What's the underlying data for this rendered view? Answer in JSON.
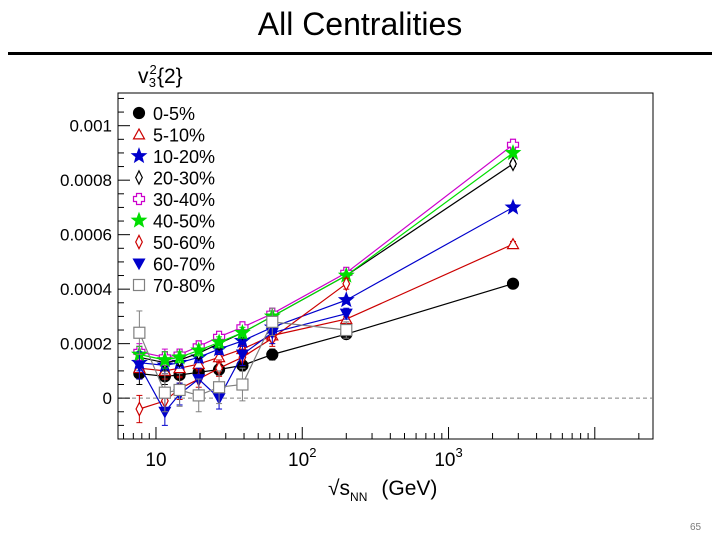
{
  "slide": {
    "title": "All Centralities",
    "page_number": "65"
  },
  "chart_data": {
    "type": "scatter",
    "title": "",
    "ylabel_main": "v",
    "ylabel_sup": "2",
    "ylabel_sub": "3",
    "ylabel_tail": "{2}",
    "xlabel_main": "√s",
    "xlabel_sub": "NN",
    "xlabel_unit": "(GeV)",
    "x_scale": "log",
    "xlim": [
      5.5,
      25000
    ],
    "ylim": [
      -0.00015,
      0.00112
    ],
    "zero_line": true,
    "grid": false,
    "legend_position": "top-left",
    "x_ticks": [
      {
        "value": 10,
        "base": "10",
        "exp": ""
      },
      {
        "value": 100,
        "base": "10",
        "exp": "2"
      },
      {
        "value": 1000,
        "base": "10",
        "exp": "3"
      }
    ],
    "y_ticks": [
      {
        "value": 0,
        "label": "0"
      },
      {
        "value": 0.0002,
        "label": "0.0002"
      },
      {
        "value": 0.0004,
        "label": "0.0004"
      },
      {
        "value": 0.0006,
        "label": "0.0006"
      },
      {
        "value": 0.0008,
        "label": "0.0008"
      },
      {
        "value": 0.001,
        "label": "0.001"
      }
    ],
    "series": [
      {
        "name": "0-5%",
        "color": "#000000",
        "marker": "circle",
        "filled": true,
        "x": [
          7.7,
          11.5,
          14.5,
          19.6,
          27,
          39,
          62.4,
          200,
          2760
        ],
        "y": [
          9e-05,
          8e-05,
          8.5e-05,
          9.5e-05,
          0.000105,
          0.00012,
          0.00016,
          0.000235,
          0.00042
        ],
        "err": [
          4e-05,
          3e-05,
          3e-05,
          2e-05,
          2e-05,
          2e-05,
          2e-05,
          1e-05,
          1e-05
        ]
      },
      {
        "name": "5-10%",
        "color": "#cc0000",
        "marker": "triangle-up",
        "filled": false,
        "x": [
          7.7,
          11.5,
          14.5,
          19.6,
          27,
          39,
          62.4,
          200,
          2760
        ],
        "y": [
          0.00011,
          0.0001,
          0.00011,
          0.000125,
          0.00015,
          0.00018,
          0.00023,
          0.00029,
          0.000565
        ],
        "err": [
          4e-05,
          3e-05,
          3e-05,
          2e-05,
          2e-05,
          2e-05,
          2e-05,
          1e-05,
          1e-05
        ]
      },
      {
        "name": "10-20%",
        "color": "#0000cc",
        "marker": "star",
        "filled": true,
        "x": [
          7.7,
          11.5,
          14.5,
          19.6,
          27,
          39,
          62.4,
          200,
          2760
        ],
        "y": [
          0.00013,
          0.00012,
          0.00013,
          0.00015,
          0.00018,
          0.00021,
          0.00026,
          0.00036,
          0.0007
        ],
        "err": [
          3e-05,
          3e-05,
          2e-05,
          2e-05,
          2e-05,
          2e-05,
          2e-05,
          1e-05,
          1e-05
        ]
      },
      {
        "name": "20-30%",
        "color": "#000000",
        "marker": "diamond",
        "filled": false,
        "x": [
          7.7,
          11.5,
          14.5,
          19.6,
          27,
          39,
          62.4,
          200,
          2760
        ],
        "y": [
          0.00015,
          0.00013,
          0.00014,
          0.000165,
          0.0002,
          0.00024,
          0.0003,
          0.00045,
          0.00086
        ],
        "err": [
          3e-05,
          3e-05,
          2e-05,
          2e-05,
          2e-05,
          2e-05,
          2e-05,
          1e-05,
          1e-05
        ]
      },
      {
        "name": "30-40%",
        "color": "#cc00cc",
        "marker": "cross",
        "filled": false,
        "x": [
          7.7,
          11.5,
          14.5,
          19.6,
          27,
          39,
          62.4,
          200,
          2760
        ],
        "y": [
          0.00017,
          0.00015,
          0.00016,
          0.00019,
          0.000225,
          0.00026,
          0.00031,
          0.00046,
          0.00093
        ],
        "err": [
          3e-05,
          3e-05,
          2e-05,
          2e-05,
          2e-05,
          2e-05,
          2e-05,
          1e-05,
          1e-05
        ]
      },
      {
        "name": "40-50%",
        "color": "#00dd00",
        "marker": "star",
        "filled": true,
        "x": [
          7.7,
          11.5,
          14.5,
          19.6,
          27,
          39,
          62.4,
          200,
          2760
        ],
        "y": [
          0.00016,
          0.00014,
          0.00015,
          0.000175,
          0.000205,
          0.00024,
          0.0003,
          0.00045,
          0.0009
        ],
        "err": [
          3e-05,
          3e-05,
          2e-05,
          2e-05,
          2e-05,
          2e-05,
          2e-05,
          1e-05,
          1e-05
        ]
      },
      {
        "name": "50-60%",
        "color": "#cc0000",
        "marker": "diamond",
        "filled": false,
        "x": [
          7.7,
          11.5,
          14.5,
          19.6,
          27,
          39,
          62.4,
          200
        ],
        "y": [
          -4e-05,
          -1e-05,
          3.5e-05,
          7e-05,
          0.00011,
          0.00015,
          0.00022,
          0.00042
        ],
        "err": [
          5e-05,
          4e-05,
          4e-05,
          3e-05,
          3e-05,
          3e-05,
          3e-05,
          2e-05
        ]
      },
      {
        "name": "60-70%",
        "color": "#0000cc",
        "marker": "triangle-down",
        "filled": true,
        "x": [
          7.7,
          11.5,
          14.5,
          19.6,
          27,
          39,
          62.4,
          200
        ],
        "y": [
          0.00012,
          -5e-05,
          1.5e-05,
          7e-05,
          0,
          0.00016,
          0.00024,
          0.00031
        ],
        "err": [
          5e-05,
          5e-05,
          4e-05,
          4e-05,
          4e-05,
          4e-05,
          4e-05,
          2e-05
        ]
      },
      {
        "name": "70-80%",
        "color": "#808080",
        "marker": "square",
        "filled": false,
        "x": [
          7.7,
          11.5,
          14.5,
          19.6,
          27,
          39,
          62.4,
          200
        ],
        "y": [
          0.00024,
          2e-05,
          3e-05,
          1e-05,
          4e-05,
          5e-05,
          0.00028,
          0.00025
        ],
        "err": [
          8e-05,
          7e-05,
          6e-05,
          6e-05,
          6e-05,
          6e-05,
          5e-05,
          3e-05
        ]
      }
    ]
  }
}
